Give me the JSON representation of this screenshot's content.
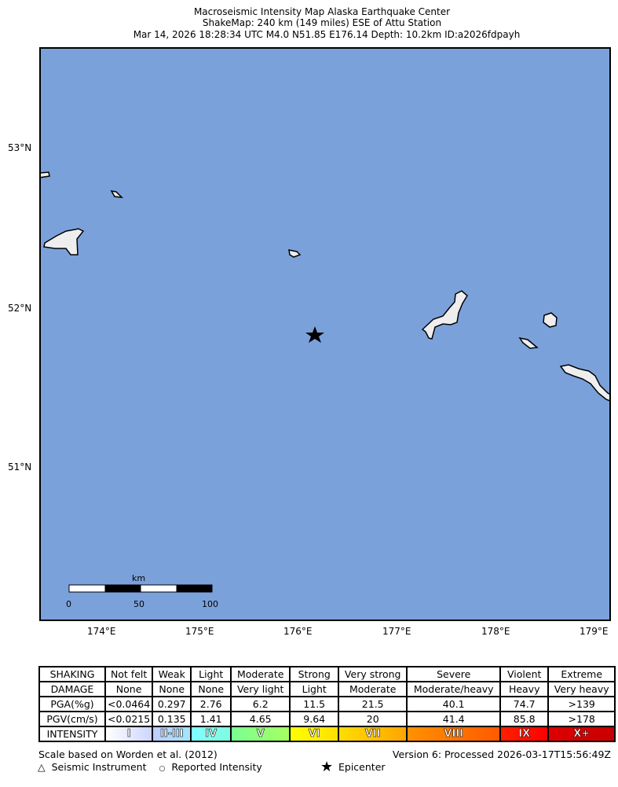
{
  "title": {
    "line1": "Macroseismic Intensity Map Alaska Earthquake Center",
    "line2": "ShakeMap: 240 km (149 miles) ESE of Attu Station",
    "line3": "Mar 14, 2026 18:28:34 UTC M4.0 N51.85 E176.14 Depth: 10.2km ID:a2026fdpayh"
  },
  "map": {
    "water_color": "#7ba1db",
    "lat_labels": [
      "53°N",
      "52°N",
      "51°N"
    ],
    "lon_labels": [
      "174°E",
      "175°E",
      "176°E",
      "177°E",
      "178°E",
      "179°E"
    ],
    "scalebar": {
      "unit": "km",
      "ticks": [
        "0",
        "50",
        "100"
      ]
    },
    "epicenter": {
      "lat": 51.85,
      "lon": 176.14,
      "icon": "star"
    }
  },
  "legend": {
    "rows": [
      [
        "SHAKING",
        "Not felt",
        "Weak",
        "Light",
        "Moderate",
        "Strong",
        "Very strong",
        "Severe",
        "Violent",
        "Extreme"
      ],
      [
        "DAMAGE",
        "None",
        "None",
        "None",
        "Very light",
        "Light",
        "Moderate",
        "Moderate/heavy",
        "Heavy",
        "Very heavy"
      ],
      [
        "PGA(%g)",
        "<0.0464",
        "0.297",
        "2.76",
        "6.2",
        "11.5",
        "21.5",
        "40.1",
        "74.7",
        ">139"
      ],
      [
        "PGV(cm/s)",
        "<0.0215",
        "0.135",
        "1.41",
        "4.65",
        "9.64",
        "20",
        "41.4",
        "85.8",
        ">178"
      ]
    ],
    "intensity_label": "INTENSITY",
    "intensity": [
      "I",
      "II-III",
      "IV",
      "V",
      "VI",
      "VII",
      "VIII",
      "IX",
      "X+"
    ],
    "intensity_colors": [
      [
        "#ffffff",
        "#ccd6ff"
      ],
      [
        "#bfccff",
        "#a0e6ff"
      ],
      [
        "#80ffff",
        "#7efbdf"
      ],
      [
        "#7aff93",
        "#a5ff60"
      ],
      [
        "#ffff00",
        "#ffe000"
      ],
      [
        "#ffdd00",
        "#ffa500"
      ],
      [
        "#ff9100",
        "#ff5a00"
      ],
      [
        "#ff2000",
        "#ff0000"
      ],
      [
        "#dd0000",
        "#c80000"
      ]
    ]
  },
  "footer": {
    "scale_note": "Scale based on Worden et al. (2012)",
    "version": "Version 6: Processed 2026-03-17T15:56:49Z",
    "instrument": "Seismic Instrument",
    "reported": "Reported Intensity",
    "epicenter": "Epicenter"
  }
}
